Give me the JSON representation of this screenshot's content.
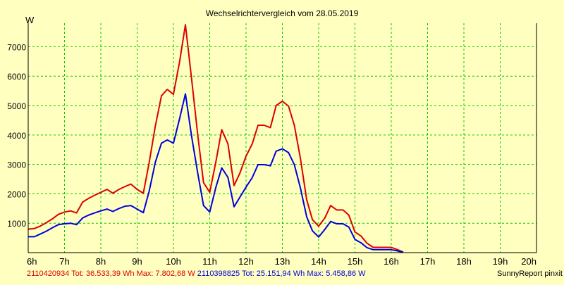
{
  "chart_data": {
    "type": "line",
    "title": "Wechselrichtervergleich vom 28.05.2019",
    "ylabel": "W",
    "xlabel": "",
    "x_ticks": [
      "6h",
      "7h",
      "8h",
      "9h",
      "10h",
      "11h",
      "12h",
      "13h",
      "14h",
      "15h",
      "16h",
      "17h",
      "18h",
      "19h",
      "20h"
    ],
    "y_ticks": [
      1000,
      2000,
      3000,
      4000,
      5000,
      6000,
      7000
    ],
    "xlim": [
      6,
      20
    ],
    "ylim": [
      0,
      7800
    ],
    "grid": true,
    "colors": {
      "background": "#ffffc0",
      "grid": "#00cc00",
      "series1": "#dd0000",
      "series2": "#0000dd"
    },
    "series": [
      {
        "name": "2110420934",
        "color": "#dd0000",
        "points": [
          [
            6.0,
            800
          ],
          [
            6.17,
            820
          ],
          [
            6.33,
            900
          ],
          [
            6.5,
            1020
          ],
          [
            6.67,
            1150
          ],
          [
            6.83,
            1300
          ],
          [
            7.0,
            1380
          ],
          [
            7.17,
            1420
          ],
          [
            7.33,
            1350
          ],
          [
            7.5,
            1720
          ],
          [
            7.67,
            1850
          ],
          [
            7.83,
            1950
          ],
          [
            8.0,
            2050
          ],
          [
            8.17,
            2150
          ],
          [
            8.33,
            2020
          ],
          [
            8.5,
            2150
          ],
          [
            8.67,
            2250
          ],
          [
            8.83,
            2330
          ],
          [
            9.0,
            2150
          ],
          [
            9.17,
            2020
          ],
          [
            9.33,
            3050
          ],
          [
            9.5,
            4300
          ],
          [
            9.67,
            5330
          ],
          [
            9.83,
            5550
          ],
          [
            10.0,
            5380
          ],
          [
            10.17,
            6500
          ],
          [
            10.33,
            7750
          ],
          [
            10.5,
            5900
          ],
          [
            10.67,
            4000
          ],
          [
            10.83,
            2380
          ],
          [
            11.0,
            2050
          ],
          [
            11.17,
            3100
          ],
          [
            11.33,
            4180
          ],
          [
            11.5,
            3700
          ],
          [
            11.67,
            2280
          ],
          [
            11.83,
            2700
          ],
          [
            12.0,
            3280
          ],
          [
            12.17,
            3700
          ],
          [
            12.33,
            4330
          ],
          [
            12.5,
            4330
          ],
          [
            12.67,
            4250
          ],
          [
            12.83,
            5000
          ],
          [
            13.0,
            5150
          ],
          [
            13.17,
            4980
          ],
          [
            13.33,
            4330
          ],
          [
            13.5,
            3180
          ],
          [
            13.67,
            1800
          ],
          [
            13.83,
            1120
          ],
          [
            14.0,
            900
          ],
          [
            14.17,
            1180
          ],
          [
            14.33,
            1600
          ],
          [
            14.5,
            1450
          ],
          [
            14.67,
            1450
          ],
          [
            14.83,
            1280
          ],
          [
            15.0,
            700
          ],
          [
            15.17,
            560
          ],
          [
            15.33,
            320
          ],
          [
            15.5,
            180
          ],
          [
            15.67,
            180
          ],
          [
            15.83,
            180
          ],
          [
            16.0,
            180
          ],
          [
            16.17,
            100
          ],
          [
            16.33,
            20
          ]
        ]
      },
      {
        "name": "2110398825",
        "color": "#0000dd",
        "points": [
          [
            6.0,
            540
          ],
          [
            6.17,
            540
          ],
          [
            6.33,
            630
          ],
          [
            6.5,
            730
          ],
          [
            6.67,
            850
          ],
          [
            6.83,
            950
          ],
          [
            7.0,
            980
          ],
          [
            7.17,
            1000
          ],
          [
            7.33,
            950
          ],
          [
            7.5,
            1180
          ],
          [
            7.67,
            1280
          ],
          [
            7.83,
            1350
          ],
          [
            8.0,
            1420
          ],
          [
            8.17,
            1480
          ],
          [
            8.33,
            1400
          ],
          [
            8.5,
            1500
          ],
          [
            8.67,
            1580
          ],
          [
            8.83,
            1600
          ],
          [
            9.0,
            1480
          ],
          [
            9.17,
            1360
          ],
          [
            9.33,
            2080
          ],
          [
            9.5,
            3070
          ],
          [
            9.67,
            3720
          ],
          [
            9.83,
            3830
          ],
          [
            10.0,
            3720
          ],
          [
            10.17,
            4560
          ],
          [
            10.33,
            5400
          ],
          [
            10.5,
            3950
          ],
          [
            10.67,
            2700
          ],
          [
            10.83,
            1600
          ],
          [
            11.0,
            1380
          ],
          [
            11.17,
            2230
          ],
          [
            11.33,
            2880
          ],
          [
            11.5,
            2560
          ],
          [
            11.67,
            1560
          ],
          [
            11.83,
            1880
          ],
          [
            12.0,
            2230
          ],
          [
            12.17,
            2550
          ],
          [
            12.33,
            2990
          ],
          [
            12.5,
            2990
          ],
          [
            12.67,
            2950
          ],
          [
            12.83,
            3450
          ],
          [
            13.0,
            3530
          ],
          [
            13.17,
            3400
          ],
          [
            13.33,
            2990
          ],
          [
            13.5,
            2180
          ],
          [
            13.67,
            1220
          ],
          [
            13.83,
            740
          ],
          [
            14.0,
            530
          ],
          [
            14.17,
            790
          ],
          [
            14.33,
            1060
          ],
          [
            14.5,
            980
          ],
          [
            14.67,
            980
          ],
          [
            14.83,
            870
          ],
          [
            15.0,
            450
          ],
          [
            15.17,
            330
          ],
          [
            15.33,
            170
          ],
          [
            15.5,
            100
          ],
          [
            15.67,
            100
          ],
          [
            15.83,
            100
          ],
          [
            16.0,
            100
          ],
          [
            16.17,
            60
          ],
          [
            16.33,
            10
          ]
        ]
      }
    ],
    "legend": [
      {
        "id": "2110420934",
        "text": "Tot: 36.533,39 Wh Max: 7.802,68 W",
        "color": "#dd0000"
      },
      {
        "id": "2110398825",
        "text": "Tot: 25.151,94 Wh Max: 5.458,86 W",
        "color": "#0000dd"
      }
    ],
    "footer_right": "SunnyReport pinxit"
  }
}
